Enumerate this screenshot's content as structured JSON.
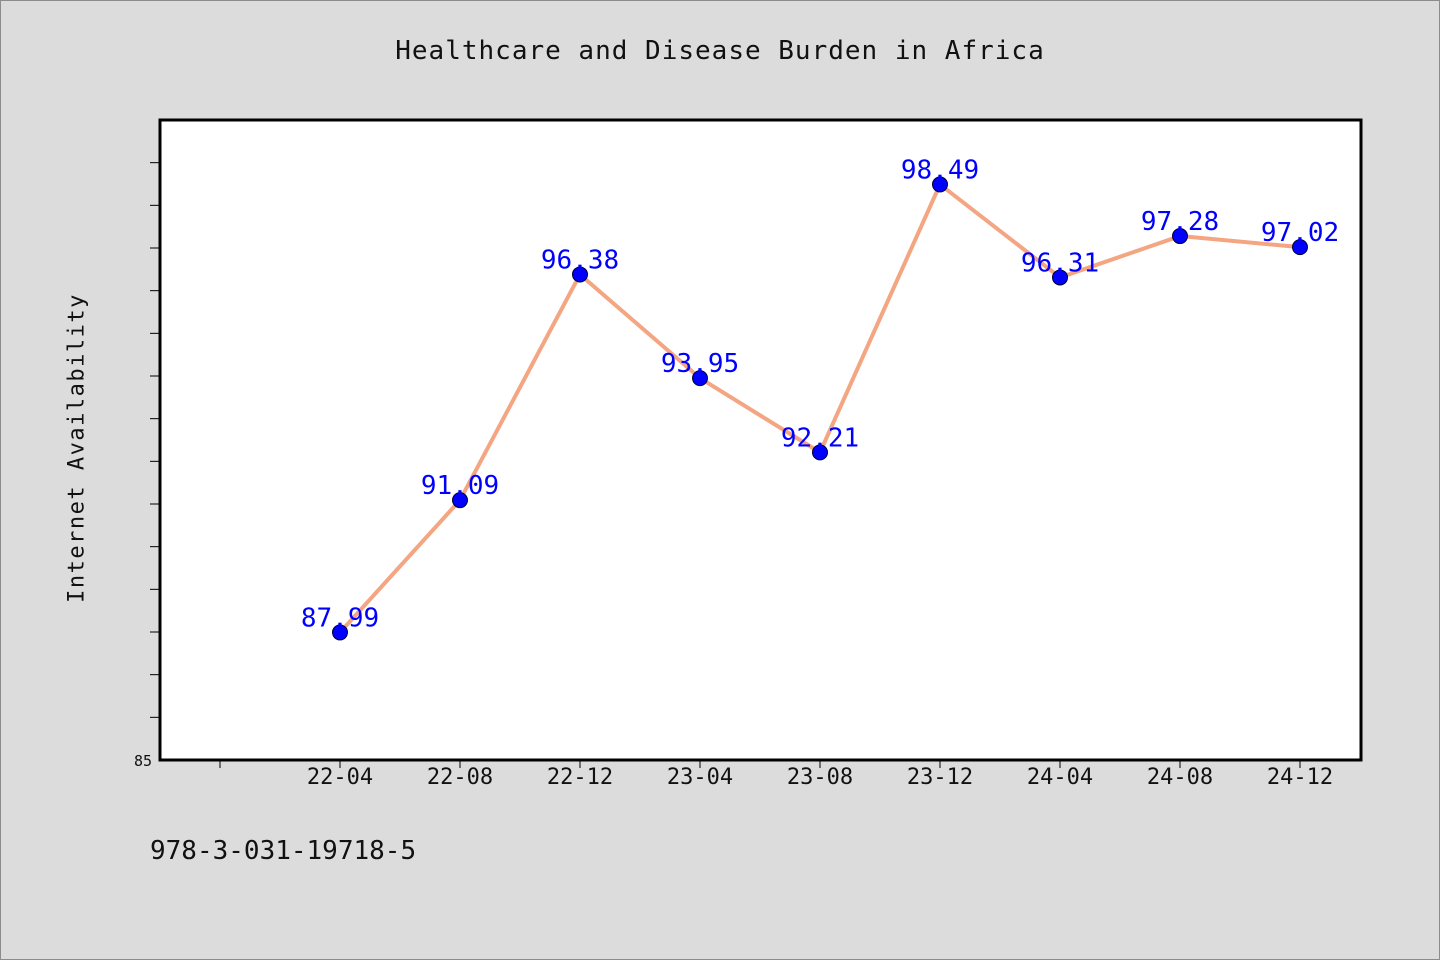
{
  "chart_data": {
    "type": "line",
    "title": "Healthcare and Disease Burden in Africa",
    "xlabel": "",
    "ylabel": "Internet Availability",
    "categories": [
      "22-04",
      "22-08",
      "22-12",
      "23-04",
      "23-08",
      "23-12",
      "24-04",
      "24-08",
      "24-12"
    ],
    "series": [
      {
        "values": [
          87.99,
          91.09,
          96.38,
          93.95,
          92.21,
          98.49,
          96.31,
          97.28,
          97.02
        ],
        "data_labels": [
          "87.99",
          "91.09",
          "96.38",
          "93.95",
          "92.21",
          "98.49",
          "96.31",
          "97.28",
          "97.02"
        ]
      }
    ],
    "ylim": [
      85,
      100
    ],
    "yticks": [
      85
    ],
    "ytick_labels": [
      "85"
    ],
    "grid": false,
    "legend": "none",
    "colors": {
      "line": "#f4a582",
      "marker": "#0000ff",
      "data_label": "#0000ff",
      "background": "#dcdcdc",
      "plot_area": "#ffffff"
    }
  },
  "footer": {
    "code": "978-3-031-19718-5"
  }
}
